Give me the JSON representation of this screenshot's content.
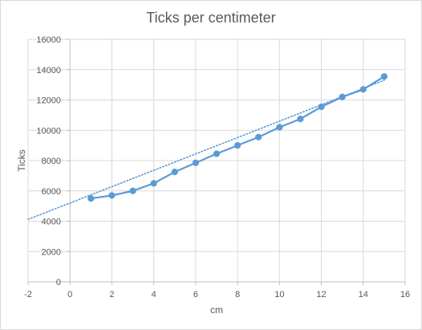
{
  "chart_data": {
    "type": "scatter",
    "title": "Ticks per centimeter",
    "xlabel": "cm",
    "ylabel": "Ticks",
    "xlim": [
      -2,
      16
    ],
    "ylim": [
      0,
      16000
    ],
    "x_ticks": [
      -2,
      0,
      2,
      4,
      6,
      8,
      10,
      12,
      14,
      16
    ],
    "y_ticks": [
      0,
      2000,
      4000,
      6000,
      8000,
      10000,
      12000,
      14000,
      16000
    ],
    "grid": "vertical and horizontal",
    "legend": "none",
    "series": [
      {
        "x": [
          1,
          2,
          3,
          4,
          5,
          6,
          7,
          8,
          9,
          10,
          11,
          12,
          13,
          14,
          15
        ],
        "y": [
          5500,
          5700,
          6000,
          6500,
          7250,
          7850,
          8450,
          9000,
          9550,
          10200,
          10750,
          11550,
          12200,
          12700,
          13550
        ],
        "color": "#5b9bd5",
        "style": "line-with-markers"
      }
    ],
    "trendline": {
      "type": "linear",
      "from": [
        -2,
        4120
      ],
      "to": [
        15,
        13300
      ],
      "style": "dotted",
      "color": "#5b9bd5"
    }
  }
}
